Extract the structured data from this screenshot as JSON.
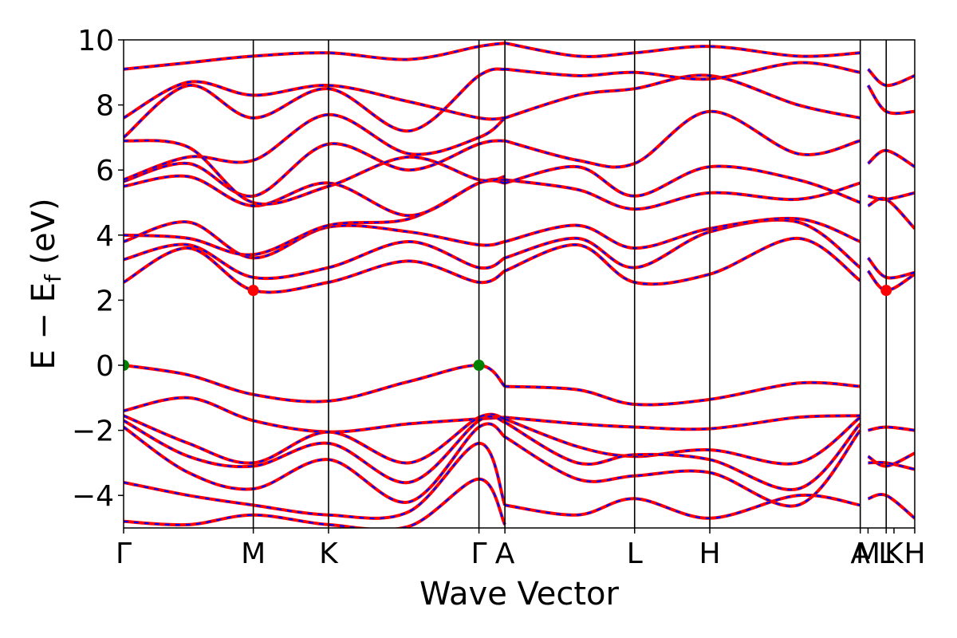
{
  "chart_data": {
    "type": "line",
    "title": "",
    "xlabel": "Wave Vector",
    "ylabel": "E − E_f (eV)",
    "ylabel_main": "E − E",
    "ylabel_sub": "f",
    "ylabel_unit": " (eV)",
    "ylim": [
      -5,
      10
    ],
    "yticks": [
      -4,
      -2,
      0,
      2,
      4,
      6,
      8,
      10
    ],
    "ytick_labels": [
      "−4",
      "−2",
      "0",
      "2",
      "4",
      "6",
      "8",
      "10"
    ],
    "xlim": [
      0,
      3.05
    ],
    "grid": false,
    "legend": "none",
    "colors": {
      "line": "#ff0000",
      "dash": "#0000ff",
      "cbm": "#ff0000",
      "vbm": "#008000",
      "divider": "#000000"
    },
    "kpoints": [
      {
        "label": "Γ",
        "x": 0.0
      },
      {
        "label": "M",
        "x": 0.5
      },
      {
        "label": "K",
        "x": 0.79
      },
      {
        "label": "Γ",
        "x": 1.37
      },
      {
        "label": "A",
        "x": 1.47
      },
      {
        "label": "L",
        "x": 1.97
      },
      {
        "label": "H",
        "x": 2.26
      },
      {
        "label": "A",
        "x": 2.84
      },
      {
        "label": "M",
        "x": 2.87
      },
      {
        "label": "L",
        "x": 2.94
      },
      {
        "label": "K",
        "x": 2.97
      },
      {
        "label": "H",
        "x": 3.05
      }
    ],
    "dividers": [
      0.5,
      0.79,
      1.37,
      1.47,
      1.97,
      2.26,
      2.84,
      2.94
    ],
    "extrema": [
      {
        "kind": "VBM",
        "x": 0.0,
        "y": 0.0
      },
      {
        "kind": "VBM",
        "x": 1.37,
        "y": 0.0
      },
      {
        "kind": "CBM",
        "x": 0.5,
        "y": 2.3
      },
      {
        "kind": "CBM",
        "x": 2.94,
        "y": 2.3
      }
    ],
    "series": [
      {
        "x": [
          0,
          0.25,
          0.5,
          0.79,
          1.1,
          1.37,
          1.47
        ],
        "y": [
          0.0,
          -0.3,
          -0.9,
          -1.1,
          -0.5,
          0.0,
          -0.65
        ]
      },
      {
        "x": [
          1.47,
          1.75,
          1.97,
          2.26,
          2.6,
          2.84
        ],
        "y": [
          -0.65,
          -0.75,
          -1.2,
          -1.05,
          -0.55,
          -0.65
        ]
      },
      {
        "x": [
          0,
          0.25,
          0.5,
          0.79,
          1.1,
          1.37,
          1.47
        ],
        "y": [
          -1.4,
          -1.0,
          -1.7,
          -2.05,
          -1.8,
          -1.65,
          -1.6
        ]
      },
      {
        "x": [
          1.47,
          1.75,
          1.97,
          2.26,
          2.6,
          2.84
        ],
        "y": [
          -1.6,
          -1.8,
          -1.9,
          -1.95,
          -1.6,
          -1.55
        ]
      },
      {
        "x": [
          0,
          0.25,
          0.5,
          0.79,
          1.1,
          1.37,
          1.47
        ],
        "y": [
          -1.55,
          -2.4,
          -3.0,
          -2.05,
          -3.0,
          -1.6,
          -1.65
        ]
      },
      {
        "x": [
          1.47,
          1.75,
          1.97,
          2.26,
          2.6,
          2.84
        ],
        "y": [
          -1.65,
          -2.5,
          -2.8,
          -2.6,
          -3.0,
          -1.6
        ]
      },
      {
        "x": [
          0,
          0.25,
          0.5,
          0.79,
          1.1,
          1.37,
          1.47
        ],
        "y": [
          -1.7,
          -2.8,
          -3.1,
          -2.4,
          -3.6,
          -1.7,
          -1.75
        ]
      },
      {
        "x": [
          1.47,
          1.75,
          1.97,
          2.26,
          2.6,
          2.84
        ],
        "y": [
          -1.75,
          -3.0,
          -2.75,
          -2.9,
          -3.8,
          -1.8
        ]
      },
      {
        "x": [
          0,
          0.25,
          0.5,
          0.79,
          1.1,
          1.37,
          1.47
        ],
        "y": [
          -1.9,
          -3.3,
          -3.8,
          -2.9,
          -4.2,
          -1.9,
          -2.2
        ]
      },
      {
        "x": [
          1.47,
          1.75,
          1.97,
          2.26,
          2.6,
          2.84
        ],
        "y": [
          -2.2,
          -3.5,
          -3.4,
          -3.3,
          -4.3,
          -2.0
        ]
      },
      {
        "x": [
          0,
          0.25,
          0.5,
          0.79,
          1.1,
          1.37,
          1.47
        ],
        "y": [
          -3.6,
          -4.0,
          -4.3,
          -4.6,
          -4.5,
          -2.4,
          -4.3
        ]
      },
      {
        "x": [
          1.47,
          1.75,
          1.97,
          2.26,
          2.6,
          2.84
        ],
        "y": [
          -4.3,
          -4.6,
          -4.1,
          -4.7,
          -4.0,
          -4.3
        ]
      },
      {
        "x": [
          0,
          0.25,
          0.5,
          0.79,
          1.1,
          1.37,
          1.47
        ],
        "y": [
          -4.8,
          -4.9,
          -4.6,
          -4.9,
          -4.95,
          -3.5,
          -4.9
        ]
      },
      {
        "x": [
          0,
          0.25,
          0.5,
          0.79,
          1.1,
          1.37,
          1.47
        ],
        "y": [
          2.55,
          3.6,
          2.3,
          2.55,
          3.2,
          2.55,
          2.9
        ]
      },
      {
        "x": [
          1.47,
          1.75,
          1.97,
          2.26,
          2.6,
          2.84
        ],
        "y": [
          2.9,
          3.7,
          2.55,
          2.8,
          3.9,
          2.6
        ]
      },
      {
        "x": [
          0,
          0.25,
          0.5,
          0.79,
          1.1,
          1.37,
          1.47
        ],
        "y": [
          3.25,
          3.7,
          2.7,
          3.0,
          3.8,
          3.0,
          3.3
        ]
      },
      {
        "x": [
          1.47,
          1.75,
          1.97,
          2.26,
          2.6,
          2.84
        ],
        "y": [
          3.3,
          3.9,
          3.0,
          4.1,
          4.4,
          3.0
        ]
      },
      {
        "x": [
          0,
          0.25,
          0.5,
          0.79,
          1.1,
          1.37,
          1.47
        ],
        "y": [
          3.8,
          4.4,
          3.3,
          4.25,
          4.1,
          3.7,
          3.8
        ]
      },
      {
        "x": [
          1.47,
          1.75,
          1.97,
          2.26,
          2.6,
          2.84
        ],
        "y": [
          3.8,
          4.3,
          3.6,
          4.2,
          4.5,
          3.8
        ]
      },
      {
        "x": [
          0,
          0.25,
          0.5,
          0.79,
          1.1,
          1.37,
          1.47
        ],
        "y": [
          4.0,
          3.9,
          3.4,
          4.3,
          4.5,
          5.6,
          5.7
        ]
      },
      {
        "x": [
          1.47,
          1.75,
          1.97,
          2.26,
          2.6,
          2.84
        ],
        "y": [
          5.7,
          5.4,
          4.8,
          5.3,
          5.1,
          5.6
        ]
      },
      {
        "x": [
          0,
          0.25,
          0.5,
          0.79,
          1.1,
          1.37,
          1.47
        ],
        "y": [
          5.5,
          5.8,
          4.9,
          5.6,
          4.6,
          5.6,
          5.6
        ]
      },
      {
        "x": [
          1.47,
          1.75,
          1.97,
          2.26,
          2.6,
          2.84
        ],
        "y": [
          5.6,
          6.1,
          5.2,
          6.1,
          5.7,
          5.0
        ]
      },
      {
        "x": [
          0,
          0.25,
          0.5,
          0.79,
          1.1,
          1.37,
          1.47
        ],
        "y": [
          5.65,
          6.2,
          5.2,
          6.8,
          6.0,
          6.8,
          6.9
        ]
      },
      {
        "x": [
          1.47,
          1.75,
          1.97,
          2.26,
          2.6,
          2.84
        ],
        "y": [
          6.9,
          6.3,
          6.2,
          7.8,
          6.5,
          6.9
        ]
      },
      {
        "x": [
          0,
          0.25,
          0.5,
          0.79,
          1.1,
          1.37,
          1.47
        ],
        "y": [
          5.7,
          6.4,
          6.3,
          7.7,
          6.5,
          7.0,
          7.6
        ]
      },
      {
        "x": [
          1.47,
          1.75,
          1.97,
          2.26,
          2.6,
          2.84
        ],
        "y": [
          7.6,
          8.3,
          8.5,
          8.9,
          8.0,
          7.6
        ]
      },
      {
        "x": [
          0,
          0.25,
          0.5,
          0.79,
          1.1,
          1.37,
          1.47
        ],
        "y": [
          6.9,
          6.7,
          5.0,
          5.5,
          6.4,
          5.7,
          5.8
        ]
      },
      {
        "x": [
          0,
          0.25,
          0.5,
          0.79,
          1.1,
          1.37,
          1.47
        ],
        "y": [
          7.0,
          8.6,
          7.6,
          8.5,
          7.2,
          8.9,
          9.1
        ]
      },
      {
        "x": [
          1.47,
          1.75,
          1.97,
          2.26,
          2.6,
          2.84
        ],
        "y": [
          9.1,
          8.9,
          9.0,
          8.8,
          9.3,
          9.0
        ]
      },
      {
        "x": [
          0,
          0.25,
          0.5,
          0.79,
          1.1,
          1.37,
          1.47
        ],
        "y": [
          7.6,
          8.7,
          8.3,
          8.6,
          8.1,
          7.6,
          7.6
        ]
      },
      {
        "x": [
          0,
          0.25,
          0.5,
          0.79,
          1.1,
          1.37,
          1.47
        ],
        "y": [
          9.1,
          9.3,
          9.5,
          9.6,
          9.4,
          9.8,
          9.9
        ]
      },
      {
        "x": [
          1.47,
          1.75,
          1.97,
          2.26,
          2.6,
          2.84
        ],
        "y": [
          9.9,
          9.5,
          9.6,
          9.8,
          9.5,
          9.6
        ]
      },
      {
        "x": [
          2.87,
          2.94,
          3.05
        ],
        "y": [
          2.9,
          2.3,
          2.8
        ]
      },
      {
        "x": [
          2.87,
          2.94,
          3.05
        ],
        "y": [
          3.3,
          2.7,
          2.85
        ]
      },
      {
        "x": [
          2.87,
          2.94,
          3.05
        ],
        "y": [
          4.9,
          5.1,
          4.2
        ]
      },
      {
        "x": [
          2.87,
          2.94,
          3.05
        ],
        "y": [
          5.2,
          5.1,
          5.3
        ]
      },
      {
        "x": [
          2.87,
          2.94,
          3.05
        ],
        "y": [
          6.2,
          6.6,
          6.1
        ]
      },
      {
        "x": [
          2.87,
          2.94,
          3.05
        ],
        "y": [
          8.6,
          7.8,
          7.8
        ]
      },
      {
        "x": [
          2.87,
          2.94,
          3.05
        ],
        "y": [
          9.1,
          8.6,
          8.9
        ]
      },
      {
        "x": [
          2.87,
          2.94,
          3.05
        ],
        "y": [
          -2.0,
          -1.9,
          -2.0
        ]
      },
      {
        "x": [
          2.87,
          2.94,
          3.05
        ],
        "y": [
          -2.8,
          -3.1,
          -2.7
        ]
      },
      {
        "x": [
          2.87,
          2.94,
          3.05
        ],
        "y": [
          -3.0,
          -3.0,
          -3.2
        ]
      },
      {
        "x": [
          2.87,
          2.94,
          3.05
        ],
        "y": [
          -4.1,
          -4.0,
          -4.7
        ]
      }
    ]
  }
}
